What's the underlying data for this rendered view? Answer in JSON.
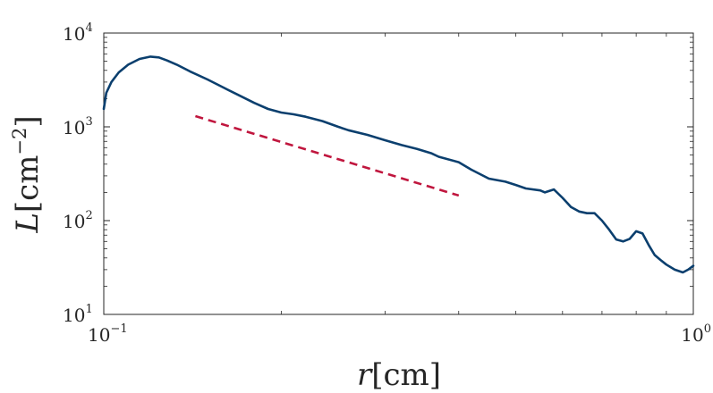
{
  "chart_data": {
    "type": "line",
    "title": "",
    "xscale": "log",
    "yscale": "log",
    "xlim": [
      0.1,
      1
    ],
    "ylim": [
      10,
      10000
    ],
    "grid": false,
    "legend": "none",
    "x_ticks": [
      {
        "value": 0.1,
        "base": "10",
        "exp": "−1"
      },
      {
        "value": 1,
        "base": "10",
        "exp": "0"
      }
    ],
    "y_ticks": [
      {
        "value": 10,
        "base": "10",
        "exp": "1"
      },
      {
        "value": 100,
        "base": "10",
        "exp": "2"
      },
      {
        "value": 1000,
        "base": "10",
        "exp": "3"
      },
      {
        "value": 10000,
        "base": "10",
        "exp": "4"
      }
    ],
    "xlabel": {
      "var": "r",
      "unit": "[cm]"
    },
    "ylabel": {
      "var": "L",
      "unit_open": "[cm",
      "unit_exp": "−2",
      "unit_close": "]"
    },
    "series": [
      {
        "color": "#0b3f6e",
        "style": "solid",
        "x": [
          0.1,
          0.101,
          0.103,
          0.106,
          0.11,
          0.115,
          0.12,
          0.124,
          0.128,
          0.133,
          0.14,
          0.15,
          0.16,
          0.17,
          0.18,
          0.19,
          0.2,
          0.21,
          0.22,
          0.235,
          0.25,
          0.26,
          0.28,
          0.3,
          0.32,
          0.34,
          0.36,
          0.37,
          0.4,
          0.42,
          0.45,
          0.48,
          0.5,
          0.52,
          0.55,
          0.56,
          0.58,
          0.6,
          0.62,
          0.64,
          0.66,
          0.68,
          0.7,
          0.72,
          0.74,
          0.76,
          0.78,
          0.8,
          0.82,
          0.84,
          0.86,
          0.88,
          0.9,
          0.93,
          0.96,
          0.98,
          1.0
        ],
        "y": [
          1550,
          2300,
          3000,
          3800,
          4600,
          5300,
          5600,
          5500,
          5100,
          4600,
          3900,
          3200,
          2600,
          2150,
          1800,
          1550,
          1420,
          1360,
          1280,
          1150,
          1000,
          920,
          820,
          720,
          640,
          580,
          520,
          480,
          420,
          350,
          280,
          260,
          240,
          220,
          210,
          200,
          215,
          175,
          140,
          125,
          120,
          120,
          100,
          80,
          63,
          60,
          64,
          77,
          73,
          55,
          43,
          38,
          34,
          30,
          28,
          30,
          33
        ]
      },
      {
        "color": "#c0163e",
        "style": "dashed",
        "x": [
          0.143,
          0.4
        ],
        "y": [
          1300,
          185
        ]
      }
    ]
  }
}
